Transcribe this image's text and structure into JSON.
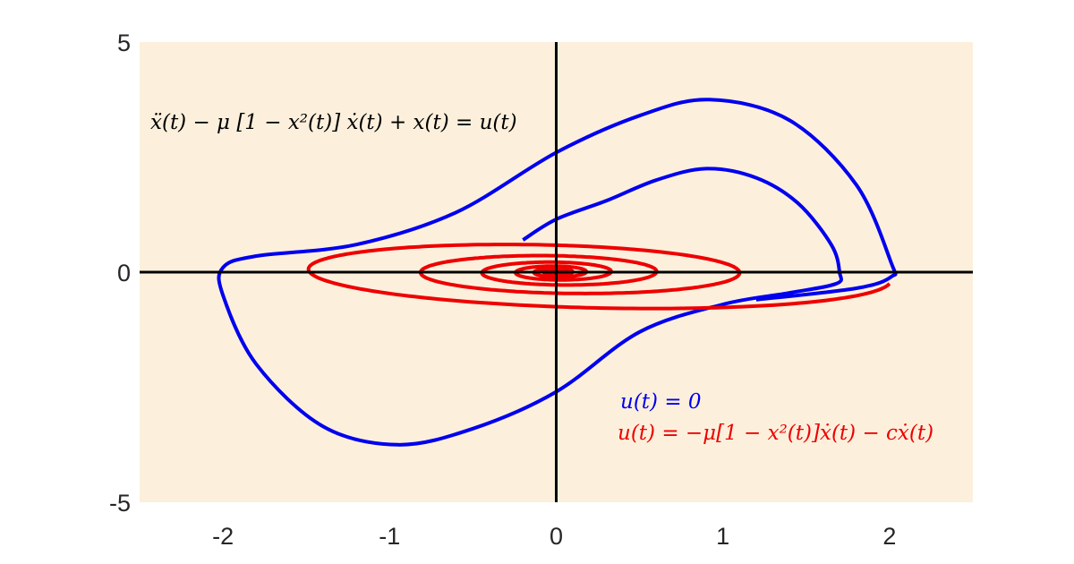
{
  "chart_data": {
    "type": "line",
    "title": "",
    "xlabel": "",
    "ylabel": "",
    "xlim": [
      -2.5,
      2.5
    ],
    "ylim": [
      -5,
      5
    ],
    "x_ticks": [
      "-2",
      "-1",
      "0",
      "1",
      "2"
    ],
    "y_ticks": [
      "5",
      "0",
      "-5"
    ],
    "grid": false,
    "background_color": "#fcf0dc",
    "axis_line_color": "#000000",
    "equation_annotation": "ẍ(t) − μ [1 − x²(t)] ẋ(t) + x(t) = u(t)",
    "legend_placement": "bottom-right",
    "series": [
      {
        "name": "u(t) = 0",
        "color": "#0000ee",
        "points": [
          [
            -0.2,
            0.7
          ],
          [
            0.0,
            1.15
          ],
          [
            0.3,
            1.55
          ],
          [
            0.6,
            2.0
          ],
          [
            0.9,
            2.25
          ],
          [
            1.2,
            2.05
          ],
          [
            1.45,
            1.5
          ],
          [
            1.65,
            0.6
          ],
          [
            1.7,
            0.0
          ],
          [
            1.68,
            -0.25
          ],
          [
            1.4,
            -0.45
          ],
          [
            1.0,
            -0.7
          ],
          [
            0.5,
            -1.3
          ],
          [
            0.0,
            -2.6
          ],
          [
            -0.5,
            -3.4
          ],
          [
            -0.95,
            -3.75
          ],
          [
            -1.4,
            -3.35
          ],
          [
            -1.8,
            -2.0
          ],
          [
            -2.0,
            -0.5
          ],
          [
            -2.0,
            0.1
          ],
          [
            -1.8,
            0.35
          ],
          [
            -1.2,
            0.6
          ],
          [
            -0.6,
            1.3
          ],
          [
            0.0,
            2.6
          ],
          [
            0.5,
            3.4
          ],
          [
            0.92,
            3.75
          ],
          [
            1.4,
            3.3
          ],
          [
            1.8,
            1.9
          ],
          [
            2.01,
            0.2
          ],
          [
            2.01,
            -0.1
          ],
          [
            1.8,
            -0.35
          ],
          [
            1.2,
            -0.6
          ]
        ]
      },
      {
        "name": "u(t) = −μ[1 − x²(t)]ẋ(t) − cẋ(t)",
        "color": "#ee0000",
        "spiral": {
          "x0": 2.0,
          "y0": -0.25,
          "x_amp": 2.0,
          "y_amp": 0.85,
          "x_ratio_per_half_turn": 0.74,
          "y_ratio_per_half_turn": 0.78,
          "turns": 9
        }
      }
    ]
  }
}
